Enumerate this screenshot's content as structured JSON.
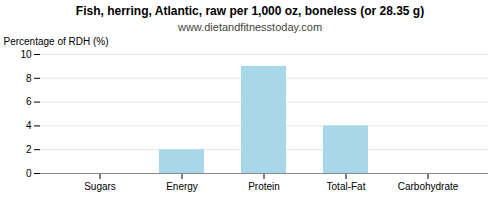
{
  "chart_data": {
    "type": "bar",
    "title": "Fish, herring, Atlantic, raw per 1,000 oz, boneless (or 28.35 g)",
    "subtitle": "www.dietandfitnesstoday.com",
    "categories": [
      "Sugars",
      "Energy",
      "Protein",
      "Total-Fat",
      "Carbohydrate"
    ],
    "values": [
      0,
      2,
      9,
      4,
      0
    ],
    "color": "#a8d8e8",
    "ylabel": "Percentage of RDH (%)",
    "ylim": [
      0,
      10
    ],
    "yticks": [
      0,
      2,
      4,
      6,
      8,
      10
    ],
    "grid": true
  }
}
